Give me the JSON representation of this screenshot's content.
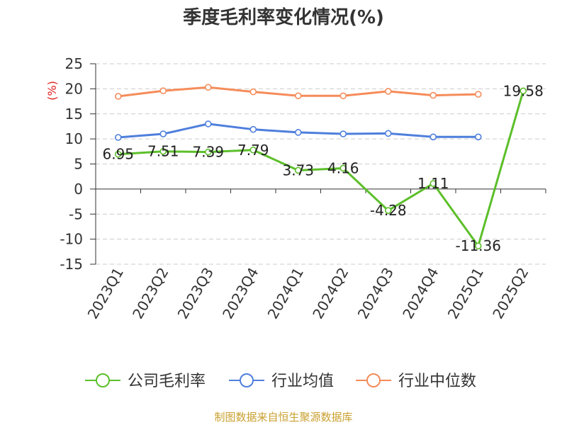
{
  "chart_data": {
    "type": "line",
    "title": "季度毛利率变化情况(%)",
    "ylabel": "(%)",
    "ylim": [
      -15,
      25
    ],
    "yticks": [
      25,
      20,
      15,
      10,
      5,
      0,
      -5,
      -10,
      -15
    ],
    "categories": [
      "2023Q1",
      "2023Q2",
      "2023Q3",
      "2023Q4",
      "2024Q1",
      "2024Q2",
      "2024Q3",
      "2024Q4",
      "2025Q1",
      "2025Q2"
    ],
    "grid": true,
    "legend_position": "bottom",
    "series": [
      {
        "name": "公司毛利率",
        "color": "#5cbf2a",
        "show_labels": true,
        "values": [
          6.95,
          7.51,
          7.39,
          7.79,
          3.73,
          4.16,
          -4.28,
          1.11,
          -11.36,
          19.58
        ]
      },
      {
        "name": "行业均值",
        "color": "#4f7fdc",
        "show_labels": false,
        "values": [
          10.3,
          11.0,
          13.0,
          11.9,
          11.3,
          11.0,
          11.1,
          10.4,
          10.4,
          null
        ]
      },
      {
        "name": "行业中位数",
        "color": "#f58c5a",
        "show_labels": false,
        "values": [
          18.5,
          19.6,
          20.3,
          19.4,
          18.6,
          18.6,
          19.5,
          18.7,
          18.9,
          null
        ]
      }
    ]
  },
  "source": "制图数据来自恒生聚源数据库"
}
